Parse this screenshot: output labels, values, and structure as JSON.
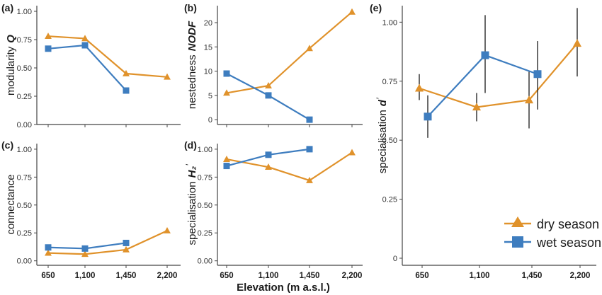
{
  "colors": {
    "dry": "#E0922B",
    "wet": "#3E7DBF",
    "axis": "#444444",
    "err": "#1a1a1a"
  },
  "x_label": "Elevation (m a.s.l.)",
  "legend": {
    "dry": "dry season",
    "wet": "wet season"
  },
  "chart_data": [
    {
      "id": "a",
      "panel_label": "(a)",
      "type": "line",
      "ylabel_plain": "modularity",
      "ylabel_italic": "Q",
      "ylabel_prime": "",
      "categories": [
        "650",
        "1,100",
        "1,450",
        "2,200"
      ],
      "ylim": [
        0,
        1.05
      ],
      "yticks": [
        0,
        0.25,
        0.5,
        0.75,
        1.0
      ],
      "yticklabels": [
        "0.00",
        "0.25",
        "0.50",
        "0.75",
        "1.00"
      ],
      "show_x_ticklabels": false,
      "series": [
        {
          "key": "dry",
          "name": "dry season",
          "marker": "triangle",
          "values": [
            0.78,
            0.76,
            0.45,
            0.42
          ]
        },
        {
          "key": "wet",
          "name": "wet season",
          "marker": "square",
          "values": [
            0.67,
            0.7,
            0.3,
            null
          ]
        }
      ]
    },
    {
      "id": "b",
      "panel_label": "(b)",
      "type": "line",
      "ylabel_plain": "nestedness",
      "ylabel_italic": "NODF",
      "ylabel_prime": "",
      "categories": [
        "650",
        "1,100",
        "1,450",
        "2,200"
      ],
      "ylim": [
        -1,
        23.5
      ],
      "yticks": [
        0,
        5,
        10,
        15,
        20
      ],
      "yticklabels": [
        "0",
        "5",
        "10",
        "15",
        "20"
      ],
      "show_x_ticklabels": false,
      "series": [
        {
          "key": "dry",
          "name": "dry season",
          "marker": "triangle",
          "values": [
            5.5,
            7.0,
            14.7,
            22.2
          ]
        },
        {
          "key": "wet",
          "name": "wet season",
          "marker": "square",
          "values": [
            9.5,
            5.0,
            0.0,
            null
          ]
        }
      ]
    },
    {
      "id": "c",
      "panel_label": "(c)",
      "type": "line",
      "ylabel_plain": "connectance",
      "ylabel_italic": "",
      "ylabel_prime": "",
      "categories": [
        "650",
        "1,100",
        "1,450",
        "2,200"
      ],
      "ylim": [
        -0.04,
        1.05
      ],
      "yticks": [
        0,
        0.25,
        0.5,
        0.75,
        1.0
      ],
      "yticklabels": [
        "0.00",
        "0.25",
        "0.50",
        "0.75",
        "1.00"
      ],
      "show_x_ticklabels": true,
      "series": [
        {
          "key": "dry",
          "name": "dry season",
          "marker": "triangle",
          "values": [
            0.07,
            0.06,
            0.1,
            0.27
          ]
        },
        {
          "key": "wet",
          "name": "wet season",
          "marker": "square",
          "values": [
            0.12,
            0.11,
            0.16,
            null
          ]
        }
      ]
    },
    {
      "id": "d",
      "panel_label": "(d)",
      "type": "line",
      "ylabel_plain": "specialisation",
      "ylabel_italic": "H₂",
      "ylabel_prime": "′",
      "categories": [
        "650",
        "1,100",
        "1,450",
        "2,200"
      ],
      "ylim": [
        -0.04,
        1.05
      ],
      "yticks": [
        0,
        0.25,
        0.5,
        0.75,
        1.0
      ],
      "yticklabels": [
        "0.00",
        "0.25",
        "0.50",
        "0.75",
        "1.00"
      ],
      "show_x_ticklabels": true,
      "series": [
        {
          "key": "dry",
          "name": "dry season",
          "marker": "triangle",
          "values": [
            0.91,
            0.84,
            0.72,
            0.97
          ]
        },
        {
          "key": "wet",
          "name": "wet season",
          "marker": "square",
          "values": [
            0.85,
            0.95,
            1.0,
            null
          ]
        }
      ]
    },
    {
      "id": "e",
      "panel_label": "(e)",
      "type": "line",
      "ylabel_plain": "specialisation",
      "ylabel_italic": "d",
      "ylabel_prime": "′",
      "categories": [
        "650",
        "1,100",
        "1,450",
        "2,200"
      ],
      "ylim": [
        -0.03,
        1.07
      ],
      "yticks": [
        0,
        0.25,
        0.5,
        0.75,
        1.0
      ],
      "yticklabels": [
        "0",
        "0.25",
        "0.50",
        "0.75",
        "1.00"
      ],
      "show_x_ticklabels": true,
      "series": [
        {
          "key": "dry",
          "name": "dry season",
          "marker": "triangle",
          "values": [
            0.72,
            0.64,
            0.67,
            0.91
          ],
          "err_low": [
            0.67,
            0.58,
            0.55,
            0.77
          ],
          "err_high": [
            0.78,
            0.7,
            0.79,
            1.06
          ]
        },
        {
          "key": "wet",
          "name": "wet season",
          "marker": "square",
          "values": [
            0.6,
            0.86,
            0.78,
            null
          ],
          "err_low": [
            0.51,
            0.7,
            0.63,
            null
          ],
          "err_high": [
            0.69,
            1.03,
            0.92,
            null
          ]
        }
      ]
    }
  ]
}
